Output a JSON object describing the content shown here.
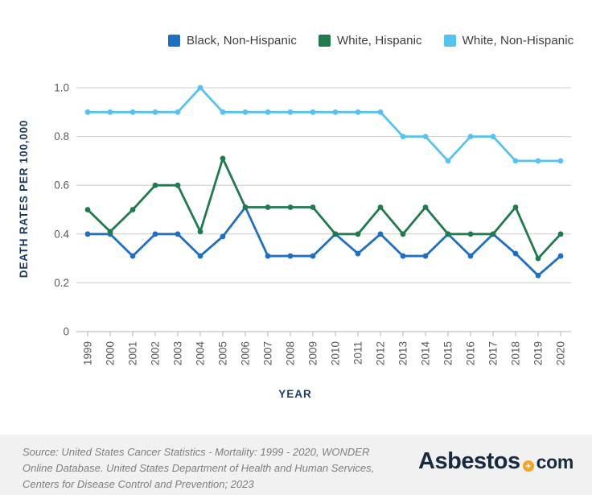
{
  "legend": {
    "items": [
      {
        "label": "Black, Non-Hispanic",
        "color": "#1d6fc4"
      },
      {
        "label": "White, Hispanic",
        "color": "#1f7a4d"
      },
      {
        "label": "White, Non-Hispanic",
        "color": "#57c2ef"
      }
    ]
  },
  "chart_data": {
    "type": "line",
    "title": "",
    "xlabel": "YEAR",
    "ylabel": "DEATH RATES PER 100,000",
    "x": [
      1999,
      2000,
      2001,
      2002,
      2003,
      2004,
      2005,
      2006,
      2007,
      2008,
      2009,
      2010,
      2011,
      2012,
      2013,
      2014,
      2015,
      2016,
      2017,
      2018,
      2019,
      2020
    ],
    "series": [
      {
        "name": "Black, Non-Hispanic",
        "color": "#1d6fc4",
        "values": [
          0.4,
          0.4,
          0.31,
          0.4,
          0.4,
          0.31,
          0.39,
          0.51,
          0.31,
          0.31,
          0.31,
          0.4,
          0.32,
          0.4,
          0.31,
          0.31,
          0.4,
          0.31,
          0.4,
          0.32,
          0.23,
          0.31
        ]
      },
      {
        "name": "White, Hispanic",
        "color": "#1f7a4d",
        "values": [
          0.5,
          0.41,
          0.5,
          0.6,
          0.6,
          0.41,
          0.71,
          0.51,
          0.51,
          0.51,
          0.51,
          0.4,
          0.4,
          0.51,
          0.4,
          0.51,
          0.4,
          0.4,
          0.4,
          0.51,
          0.3,
          0.4
        ]
      },
      {
        "name": "White, Non-Hispanic",
        "color": "#57c2ef",
        "values": [
          0.9,
          0.9,
          0.9,
          0.9,
          0.9,
          1.0,
          0.9,
          0.9,
          0.9,
          0.9,
          0.9,
          0.9,
          0.9,
          0.9,
          0.8,
          0.8,
          0.7,
          0.8,
          0.8,
          0.7,
          0.7,
          0.7
        ]
      }
    ],
    "ylim": [
      0,
      1.0
    ],
    "yticks": [
      0,
      0.2,
      0.4,
      0.6,
      0.8,
      1.0
    ],
    "ytick_labels": [
      "0",
      "0.2",
      "0.4",
      "0.6",
      "0.8",
      "1.0"
    ],
    "grid": true,
    "legend_position": "top"
  },
  "colors": {
    "gridline": "#cccccc",
    "axis_line": "#b3b3b3",
    "tick_text": "#58595b",
    "axis_title": "#1b3c64",
    "footer_bg": "#f1f1f2",
    "logo_text": "#182a3f",
    "logo_accent": "#f6a41f"
  },
  "footer": {
    "source_lines": [
      "Source: United States Cancer Statistics - Mortality: 1999 - 2020, WONDER",
      "Online Database. United States Department of Health and Human Services,",
      "Centers for Disease Control and Prevention; 2023"
    ],
    "logo": {
      "part1": "Asbestos",
      "plus_icon": "+",
      "part2": "com"
    }
  }
}
